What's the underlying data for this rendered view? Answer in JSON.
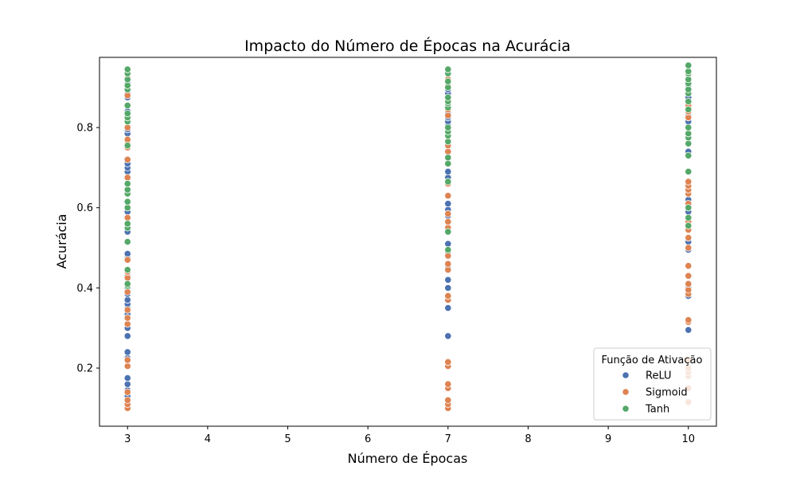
{
  "chart_data": {
    "type": "scatter",
    "title": "Impacto do Número de Épocas na Acurácia",
    "xlabel": "Número de Épocas",
    "ylabel": "Acurácia",
    "xlim": [
      2.65,
      10.35
    ],
    "ylim": [
      0.055,
      0.975
    ],
    "xticks": [
      "3",
      "4",
      "5",
      "6",
      "7",
      "8",
      "9",
      "10"
    ],
    "yticks": [
      "0.2",
      "0.4",
      "0.6",
      "0.8"
    ],
    "grid": false,
    "legend": {
      "title": "Função de Ativação",
      "placement": "lower-right"
    },
    "colors": {
      "ReLU": "#4c72b0",
      "Sigmoid": "#dd8452",
      "Tanh": "#55a868"
    },
    "series": [
      {
        "name": "ReLU",
        "points": [
          [
            3,
            0.13
          ],
          [
            3,
            0.145
          ],
          [
            3,
            0.16
          ],
          [
            3,
            0.175
          ],
          [
            3,
            0.225
          ],
          [
            3,
            0.24
          ],
          [
            3,
            0.28
          ],
          [
            3,
            0.3
          ],
          [
            3,
            0.335
          ],
          [
            3,
            0.35
          ],
          [
            3,
            0.36
          ],
          [
            3,
            0.37
          ],
          [
            3,
            0.385
          ],
          [
            3,
            0.4
          ],
          [
            3,
            0.43
          ],
          [
            3,
            0.475
          ],
          [
            3,
            0.485
          ],
          [
            3,
            0.54
          ],
          [
            3,
            0.575
          ],
          [
            3,
            0.59
          ],
          [
            3,
            0.69
          ],
          [
            3,
            0.7
          ],
          [
            3,
            0.71
          ],
          [
            3,
            0.785
          ],
          [
            3,
            0.795
          ],
          [
            3,
            0.84
          ],
          [
            3,
            0.875
          ],
          [
            3,
            0.885
          ],
          [
            3,
            0.91
          ],
          [
            7,
            0.28
          ],
          [
            7,
            0.35
          ],
          [
            7,
            0.4
          ],
          [
            7,
            0.42
          ],
          [
            7,
            0.45
          ],
          [
            7,
            0.49
          ],
          [
            7,
            0.51
          ],
          [
            7,
            0.54
          ],
          [
            7,
            0.58
          ],
          [
            7,
            0.595
          ],
          [
            7,
            0.61
          ],
          [
            7,
            0.675
          ],
          [
            7,
            0.69
          ],
          [
            7,
            0.805
          ],
          [
            7,
            0.815
          ],
          [
            7,
            0.825
          ],
          [
            7,
            0.835
          ],
          [
            7,
            0.87
          ],
          [
            7,
            0.885
          ],
          [
            7,
            0.895
          ],
          [
            10,
            0.295
          ],
          [
            10,
            0.38
          ],
          [
            10,
            0.4
          ],
          [
            10,
            0.495
          ],
          [
            10,
            0.515
          ],
          [
            10,
            0.555
          ],
          [
            10,
            0.59
          ],
          [
            10,
            0.605
          ],
          [
            10,
            0.62
          ],
          [
            10,
            0.66
          ],
          [
            10,
            0.74
          ],
          [
            10,
            0.815
          ],
          [
            10,
            0.83
          ],
          [
            10,
            0.86
          ],
          [
            10,
            0.875
          ],
          [
            10,
            0.905
          ]
        ]
      },
      {
        "name": "Sigmoid",
        "points": [
          [
            3,
            0.1
          ],
          [
            3,
            0.11
          ],
          [
            3,
            0.12
          ],
          [
            3,
            0.14
          ],
          [
            3,
            0.205
          ],
          [
            3,
            0.22
          ],
          [
            3,
            0.31
          ],
          [
            3,
            0.325
          ],
          [
            3,
            0.345
          ],
          [
            3,
            0.39
          ],
          [
            3,
            0.425
          ],
          [
            3,
            0.44
          ],
          [
            3,
            0.47
          ],
          [
            3,
            0.555
          ],
          [
            3,
            0.575
          ],
          [
            3,
            0.66
          ],
          [
            3,
            0.675
          ],
          [
            3,
            0.72
          ],
          [
            3,
            0.75
          ],
          [
            3,
            0.76
          ],
          [
            3,
            0.77
          ],
          [
            3,
            0.8
          ],
          [
            3,
            0.88
          ],
          [
            3,
            0.925
          ],
          [
            7,
            0.1
          ],
          [
            7,
            0.11
          ],
          [
            7,
            0.12
          ],
          [
            7,
            0.15
          ],
          [
            7,
            0.16
          ],
          [
            7,
            0.205
          ],
          [
            7,
            0.215
          ],
          [
            7,
            0.37
          ],
          [
            7,
            0.38
          ],
          [
            7,
            0.445
          ],
          [
            7,
            0.46
          ],
          [
            7,
            0.48
          ],
          [
            7,
            0.55
          ],
          [
            7,
            0.565
          ],
          [
            7,
            0.585
          ],
          [
            7,
            0.63
          ],
          [
            7,
            0.66
          ],
          [
            7,
            0.74
          ],
          [
            7,
            0.755
          ],
          [
            7,
            0.83
          ],
          [
            7,
            0.845
          ],
          [
            7,
            0.905
          ],
          [
            7,
            0.92
          ],
          [
            10,
            0.115
          ],
          [
            10,
            0.15
          ],
          [
            10,
            0.18
          ],
          [
            10,
            0.19
          ],
          [
            10,
            0.2
          ],
          [
            10,
            0.22
          ],
          [
            10,
            0.315
          ],
          [
            10,
            0.32
          ],
          [
            10,
            0.385
          ],
          [
            10,
            0.395
          ],
          [
            10,
            0.41
          ],
          [
            10,
            0.43
          ],
          [
            10,
            0.455
          ],
          [
            10,
            0.5
          ],
          [
            10,
            0.525
          ],
          [
            10,
            0.545
          ],
          [
            10,
            0.565
          ],
          [
            10,
            0.61
          ],
          [
            10,
            0.635
          ],
          [
            10,
            0.645
          ],
          [
            10,
            0.655
          ],
          [
            10,
            0.665
          ],
          [
            10,
            0.825
          ],
          [
            10,
            0.84
          ],
          [
            10,
            0.855
          ],
          [
            10,
            0.93
          ]
        ]
      },
      {
        "name": "Tanh",
        "points": [
          [
            3,
            0.405
          ],
          [
            3,
            0.41
          ],
          [
            3,
            0.445
          ],
          [
            3,
            0.515
          ],
          [
            3,
            0.55
          ],
          [
            3,
            0.56
          ],
          [
            3,
            0.6
          ],
          [
            3,
            0.615
          ],
          [
            3,
            0.635
          ],
          [
            3,
            0.645
          ],
          [
            3,
            0.66
          ],
          [
            3,
            0.755
          ],
          [
            3,
            0.815
          ],
          [
            3,
            0.825
          ],
          [
            3,
            0.835
          ],
          [
            3,
            0.855
          ],
          [
            3,
            0.895
          ],
          [
            3,
            0.905
          ],
          [
            3,
            0.92
          ],
          [
            3,
            0.935
          ],
          [
            3,
            0.945
          ],
          [
            7,
            0.495
          ],
          [
            7,
            0.54
          ],
          [
            7,
            0.665
          ],
          [
            7,
            0.71
          ],
          [
            7,
            0.725
          ],
          [
            7,
            0.765
          ],
          [
            7,
            0.78
          ],
          [
            7,
            0.79
          ],
          [
            7,
            0.8
          ],
          [
            7,
            0.85
          ],
          [
            7,
            0.86
          ],
          [
            7,
            0.865
          ],
          [
            7,
            0.875
          ],
          [
            7,
            0.9
          ],
          [
            7,
            0.915
          ],
          [
            7,
            0.935
          ],
          [
            7,
            0.945
          ],
          [
            10,
            0.555
          ],
          [
            10,
            0.575
          ],
          [
            10,
            0.6
          ],
          [
            10,
            0.69
          ],
          [
            10,
            0.73
          ],
          [
            10,
            0.76
          ],
          [
            10,
            0.775
          ],
          [
            10,
            0.785
          ],
          [
            10,
            0.8
          ],
          [
            10,
            0.845
          ],
          [
            10,
            0.865
          ],
          [
            10,
            0.885
          ],
          [
            10,
            0.895
          ],
          [
            10,
            0.91
          ],
          [
            10,
            0.92
          ],
          [
            10,
            0.935
          ],
          [
            10,
            0.94
          ],
          [
            10,
            0.955
          ]
        ]
      }
    ]
  }
}
